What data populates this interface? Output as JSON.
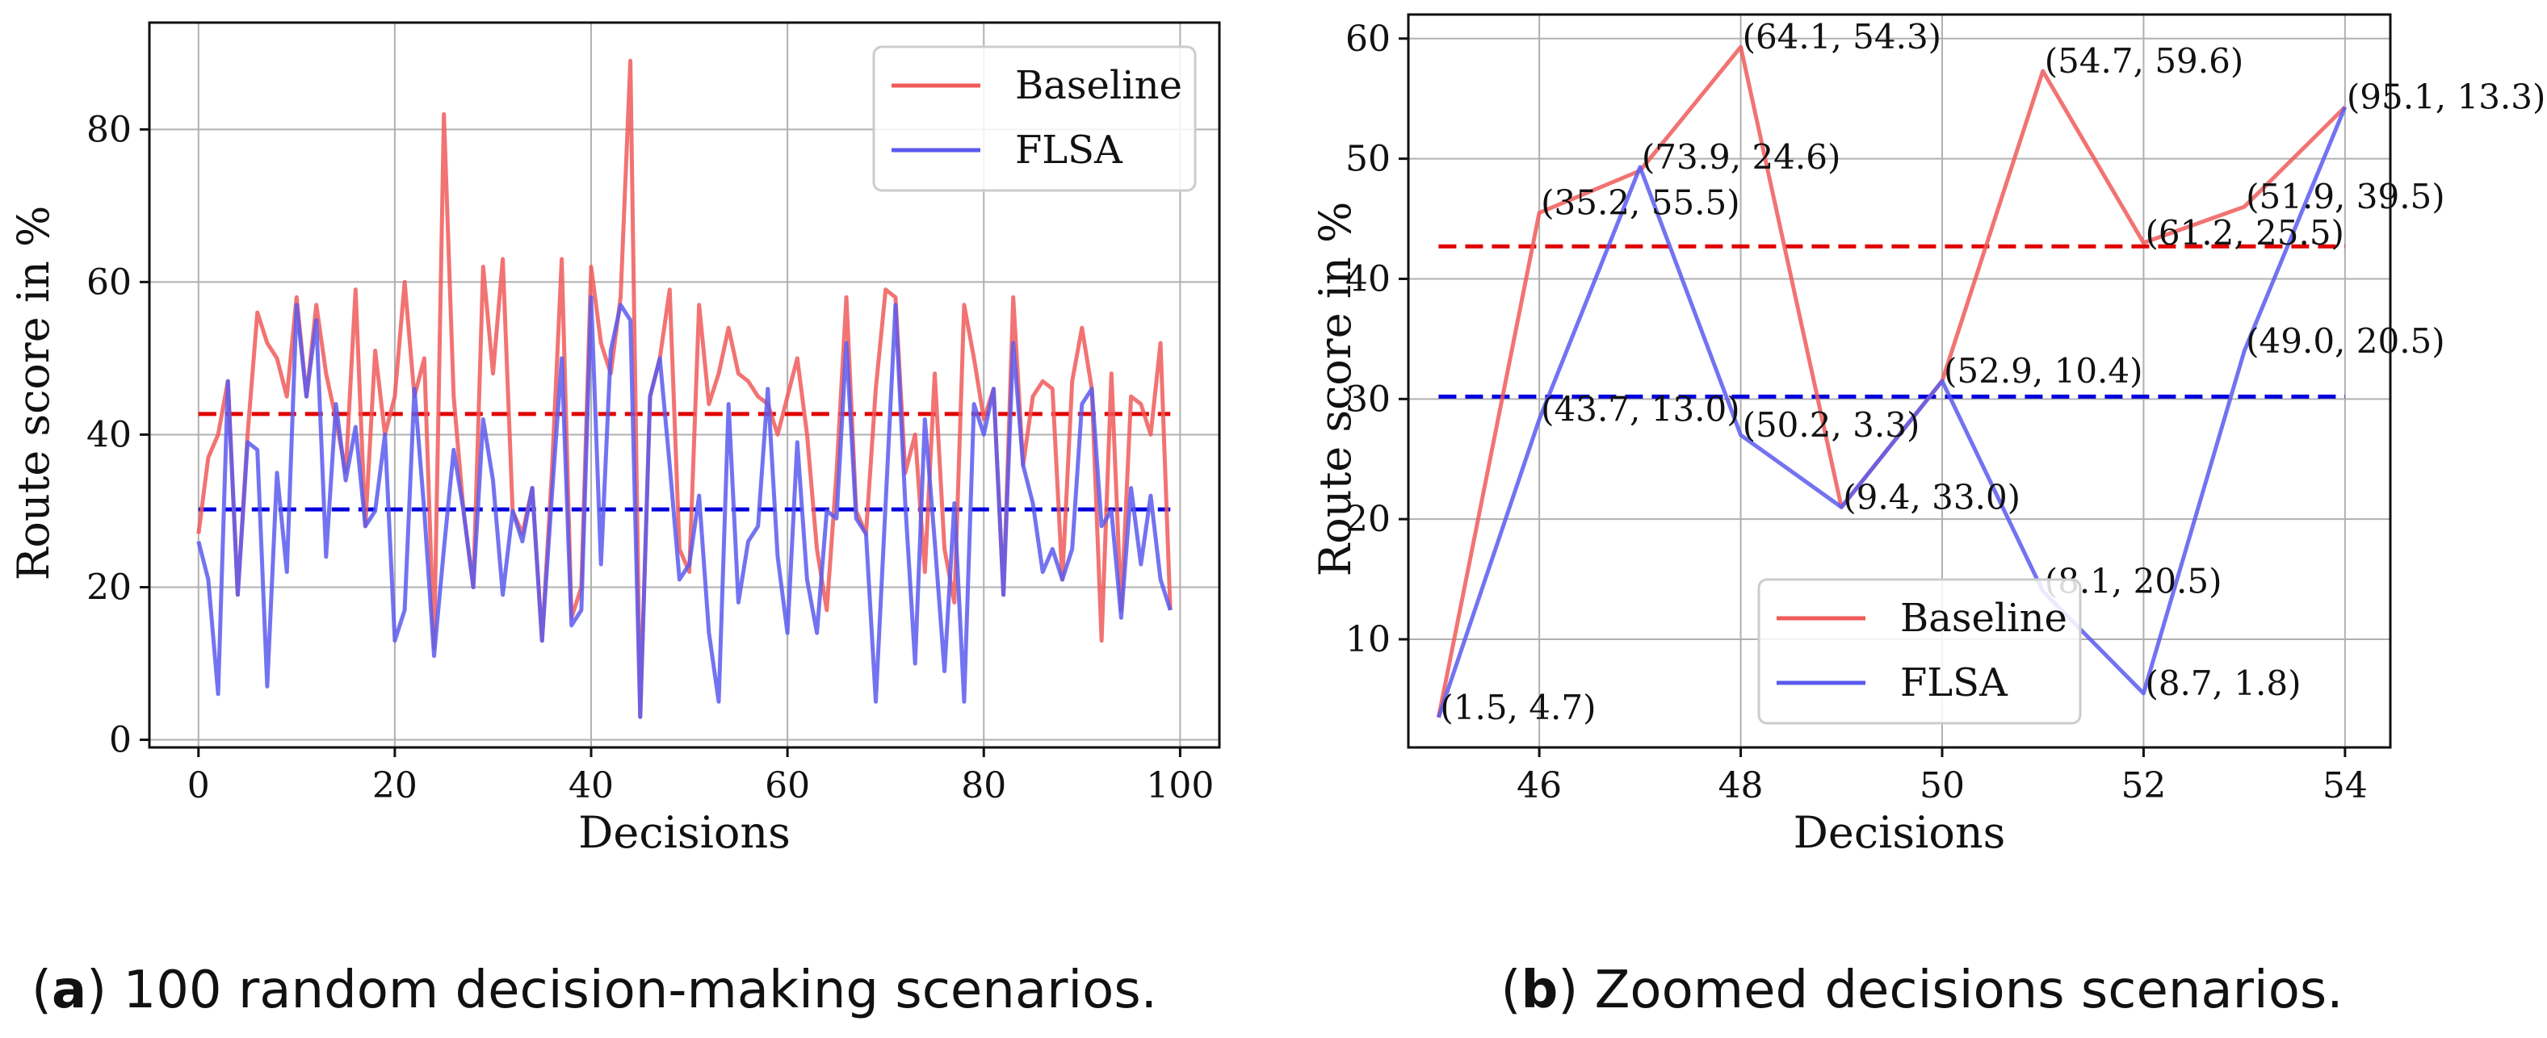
{
  "chart_data": [
    {
      "type": "line",
      "xlabel": "Decisions",
      "ylabel": "Route score in %",
      "xlim": [
        -5,
        104
      ],
      "ylim": [
        -1,
        94
      ],
      "xticks": [
        0,
        20,
        40,
        60,
        80,
        100
      ],
      "yticks": [
        0,
        20,
        40,
        60,
        80
      ],
      "grid": true,
      "legend": "top-right",
      "x": [
        0,
        1,
        2,
        3,
        4,
        5,
        6,
        7,
        8,
        9,
        10,
        11,
        12,
        13,
        14,
        15,
        16,
        17,
        18,
        19,
        20,
        21,
        22,
        23,
        24,
        25,
        26,
        27,
        28,
        29,
        30,
        31,
        32,
        33,
        34,
        35,
        36,
        37,
        38,
        39,
        40,
        41,
        42,
        43,
        44,
        45,
        46,
        47,
        48,
        49,
        50,
        51,
        52,
        53,
        54,
        55,
        56,
        57,
        58,
        59,
        60,
        61,
        62,
        63,
        64,
        65,
        66,
        67,
        68,
        69,
        70,
        71,
        72,
        73,
        74,
        75,
        76,
        77,
        78,
        79,
        80,
        81,
        82,
        83,
        84,
        85,
        86,
        87,
        88,
        89,
        90,
        91,
        92,
        93,
        94,
        95,
        96,
        97,
        98,
        99
      ],
      "series": [
        {
          "name": "Baseline",
          "color": "#f05a5a",
          "values": [
            27,
            37,
            40,
            47,
            19,
            40,
            56,
            52,
            50,
            45,
            58,
            45,
            57,
            48,
            42,
            35,
            59,
            28,
            51,
            40,
            45,
            60,
            45,
            50,
            12,
            82,
            45,
            30,
            20,
            62,
            48,
            63,
            30,
            27,
            33,
            13,
            35,
            63,
            16,
            20,
            62,
            52,
            48,
            58,
            89,
            3,
            45,
            50,
            59,
            25,
            22,
            57,
            44,
            48,
            54,
            48,
            47,
            45,
            44,
            40,
            45,
            50,
            40,
            25,
            17,
            35,
            58,
            30,
            27,
            46,
            59,
            58,
            35,
            40,
            22,
            48,
            25,
            18,
            57,
            50,
            42,
            46,
            19,
            58,
            36,
            45,
            47,
            46,
            21,
            47,
            54,
            46,
            13,
            48,
            17,
            45,
            44,
            40,
            52,
            17
          ]
        },
        {
          "name": "FLSA",
          "color": "#5a5aee",
          "values": [
            26,
            21,
            6,
            47,
            19,
            39,
            38,
            7,
            35,
            22,
            57,
            45,
            55,
            24,
            44,
            34,
            41,
            28,
            30,
            40,
            13,
            17,
            46,
            30,
            11,
            25,
            38,
            30,
            20,
            42,
            34,
            19,
            30,
            26,
            33,
            13,
            32,
            50,
            15,
            17,
            58,
            23,
            51,
            57,
            55,
            3,
            45,
            50,
            36,
            21,
            23,
            32,
            14,
            5,
            44,
            18,
            26,
            28,
            46,
            24,
            14,
            39,
            21,
            14,
            30,
            29,
            52,
            29,
            27,
            5,
            31,
            57,
            31,
            10,
            42,
            26,
            9,
            31,
            5,
            44,
            40,
            46,
            19,
            52,
            36,
            31,
            22,
            25,
            21,
            25,
            44,
            46,
            28,
            30,
            16,
            33,
            23,
            32,
            21,
            17
          ]
        }
      ],
      "averages": [
        {
          "series": "Baseline",
          "value": 42.7,
          "color": "#e00000"
        },
        {
          "series": "FLSA",
          "value": 30.2,
          "color": "#0000dd"
        }
      ]
    },
    {
      "type": "line",
      "xlabel": "Decisions",
      "ylabel": "Route score in %",
      "xlim": [
        44.7,
        54.45
      ],
      "ylim": [
        1,
        62
      ],
      "xticks": [
        46,
        48,
        50,
        52,
        54
      ],
      "yticks": [
        10,
        20,
        30,
        40,
        50,
        60
      ],
      "grid": true,
      "legend": "bottom-center",
      "x": [
        45,
        46,
        47,
        48,
        49,
        50,
        51,
        52,
        53,
        54
      ],
      "series": [
        {
          "name": "Baseline",
          "color": "#f05a5a",
          "values": [
            3.5,
            45.5,
            49,
            59.3,
            21,
            31.5,
            57.3,
            43,
            46,
            54.3
          ],
          "annotations": [
            "",
            "(35.2, 55.5)",
            "",
            "(64.1, 54.3)",
            "",
            "",
            "(54.7, 59.6)",
            "(61.2, 25.5)",
            "(51.9, 39.5)",
            ""
          ],
          "annotation_color": "#e00000"
        },
        {
          "name": "FLSA",
          "color": "#5a5aee",
          "values": [
            3.5,
            28.3,
            49.3,
            27,
            21,
            31.5,
            14,
            5.5,
            34,
            54.3
          ],
          "annotations": [
            "(1.5, 4.7)",
            "(43.7, 13.0)",
            "(73.9, 24.6)",
            "(50.2, 3.3)",
            "(9.4, 33.0)",
            "(52.9, 10.4)",
            "(8.1, 20.5)",
            "(8.7, 1.8)",
            "(49.0, 20.5)",
            "(95.1, 13.3)"
          ],
          "annotation_color": "#0000dd"
        }
      ],
      "averages": [
        {
          "series": "Baseline",
          "value": 42.7,
          "color": "#e00000"
        },
        {
          "series": "FLSA",
          "value": 30.2,
          "color": "#0000dd"
        }
      ]
    }
  ],
  "captions": [
    {
      "letter": "a",
      "text": "100 random decision-making scenarios."
    },
    {
      "letter": "b",
      "text": "Zoomed decisions scenarios."
    }
  ]
}
